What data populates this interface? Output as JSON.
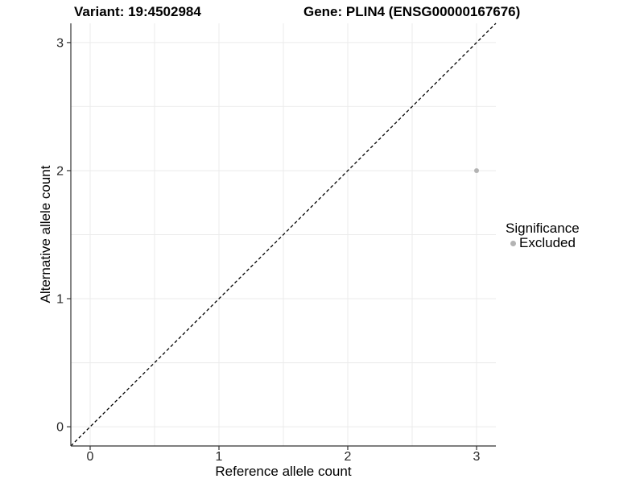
{
  "titles": {
    "variant": "Variant: 19:4502984",
    "gene": "Gene: PLIN4 (ENSG00000167676)"
  },
  "axes": {
    "x": {
      "label": "Reference allele count"
    },
    "y": {
      "label": "Alternative allele count"
    }
  },
  "legend": {
    "title": "Significance",
    "items": [
      {
        "label": "Excluded",
        "color": "#b3b3b3"
      }
    ]
  },
  "colors": {
    "background": "#ffffff",
    "grid": "#ebebeb",
    "axis_line": "#333333",
    "tick_mark": "#333333",
    "tick_text": "#262626",
    "reference_line": "#000000",
    "excluded_point": "#b3b3b3"
  },
  "chart_data": {
    "type": "scatter",
    "title": "Variant: 19:4502984   Gene: PLIN4 (ENSG00000167676)",
    "xlabel": "Reference allele count",
    "ylabel": "Alternative allele count",
    "xlim": [
      -0.15,
      3.15
    ],
    "ylim": [
      -0.15,
      3.15
    ],
    "x_ticks": [
      0,
      1,
      2,
      3
    ],
    "y_ticks": [
      0,
      1,
      2,
      3
    ],
    "grid": true,
    "grid_min": 0,
    "grid_max": 3,
    "grid_step": 0.5,
    "reference_line": {
      "type": "identity",
      "slope": 1,
      "intercept": 0,
      "style": "dashed",
      "color": "#000000"
    },
    "series": [
      {
        "name": "Excluded",
        "color": "#b3b3b3",
        "points": [
          {
            "x": 3,
            "y": 2
          }
        ]
      }
    ],
    "legend_title": "Significance",
    "legend_position": "right",
    "point_radius": 3,
    "tick_font_size": 16
  }
}
